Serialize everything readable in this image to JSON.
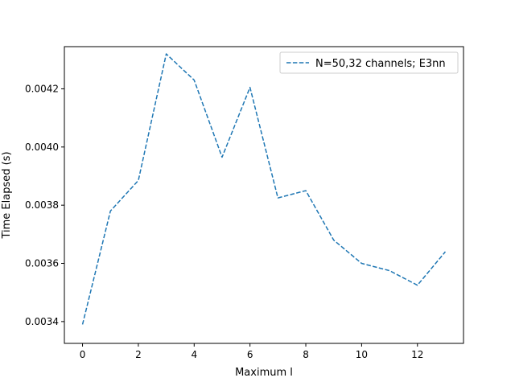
{
  "chart_data": {
    "type": "line",
    "title": "",
    "xlabel": "Maximum l",
    "ylabel": "Time Elapsed (s)",
    "xlim": [
      -0.65,
      13.65
    ],
    "ylim": [
      0.003325,
      0.004345
    ],
    "xticks": [
      0,
      2,
      4,
      6,
      8,
      10,
      12
    ],
    "xtick_labels": [
      "0",
      "2",
      "4",
      "6",
      "8",
      "10",
      "12"
    ],
    "yticks": [
      0.0034,
      0.0036,
      0.0038,
      0.004,
      0.0042
    ],
    "ytick_labels": [
      "0.0034",
      "0.0036",
      "0.0038",
      "0.0040",
      "0.0042"
    ],
    "grid": false,
    "legend_position": "top-right",
    "series": [
      {
        "name": "N=50,32 channels; E3nn",
        "color": "#1f77b4",
        "line_style": "dashed",
        "x": [
          0,
          1,
          2,
          3,
          4,
          5,
          6,
          7,
          8,
          9,
          10,
          11,
          12,
          13
        ],
        "y": [
          0.00339,
          0.00378,
          0.003885,
          0.00432,
          0.00423,
          0.003965,
          0.004205,
          0.003825,
          0.00385,
          0.00368,
          0.0036,
          0.003575,
          0.003525,
          0.00364
        ]
      }
    ]
  }
}
